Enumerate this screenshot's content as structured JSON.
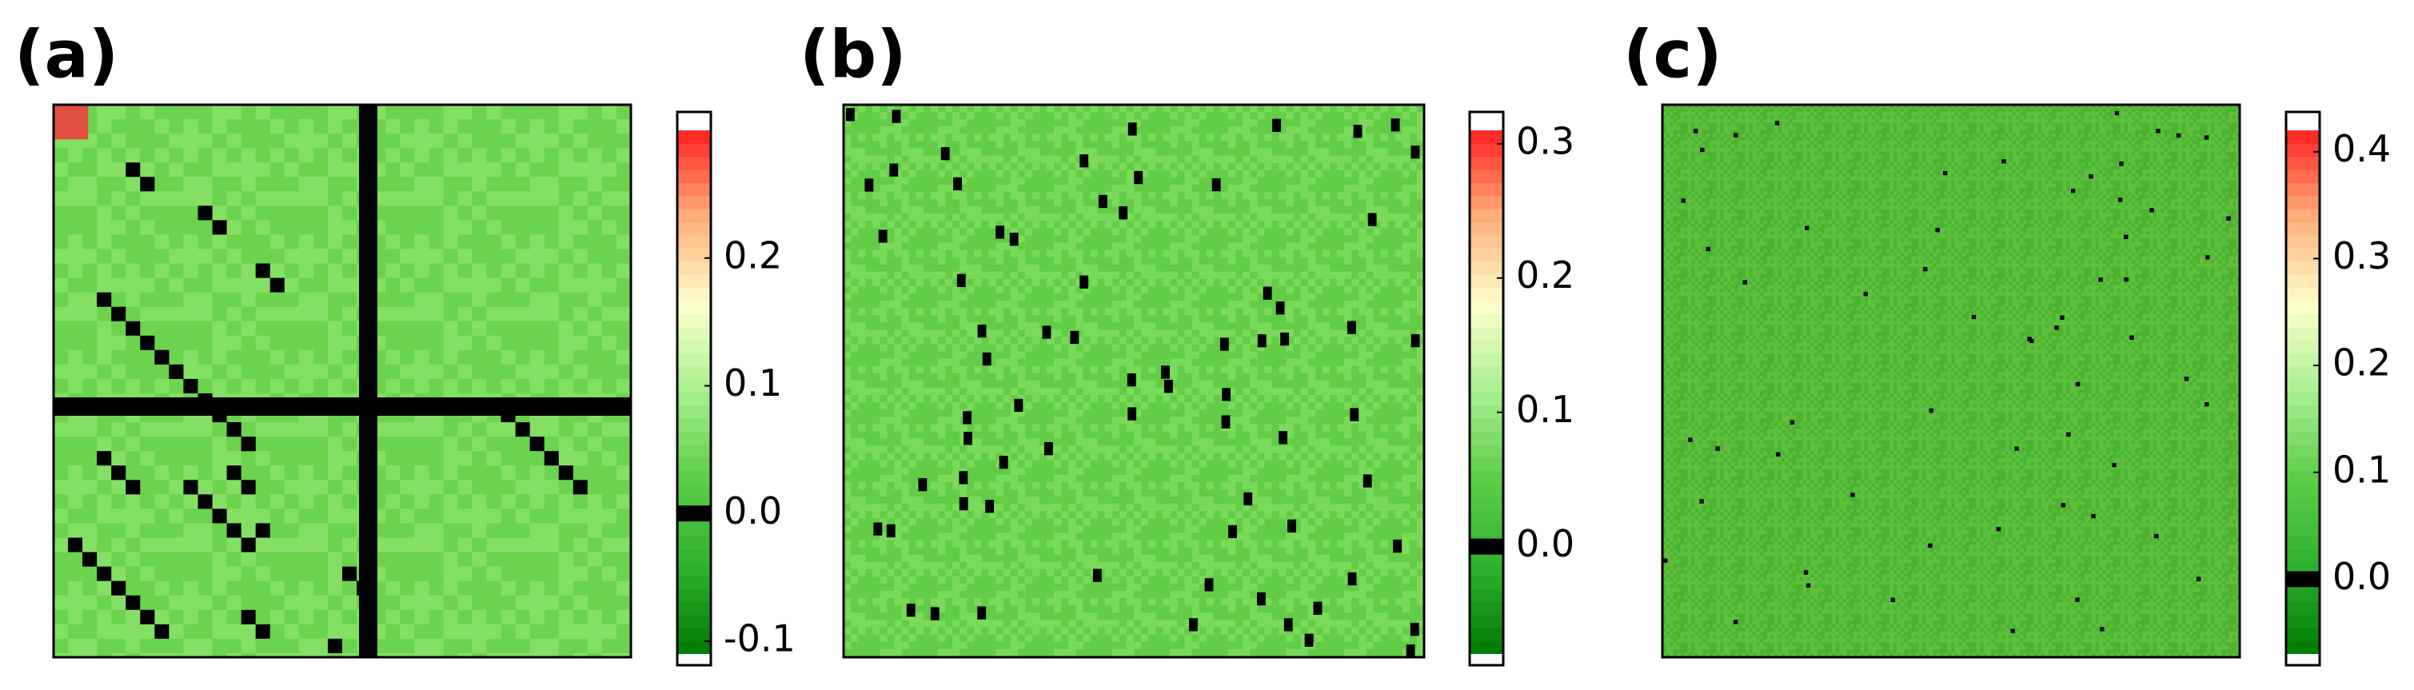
{
  "chart_data": [
    {
      "type": "heatmap",
      "label": "(a)",
      "zlim": [
        -0.11,
        0.3
      ],
      "zticks": [
        -0.1,
        {
          "value": 0,
          "label": "0.0"
        },
        0.1,
        0.2
      ],
      "colors": [
        "#84e064",
        "#6cd34e"
      ],
      "colormap": [
        "#007a00",
        "#2fb02f",
        "#5ccd48",
        "#a6f08e",
        "#ffffcc",
        "#ffb07a",
        "#ff2020"
      ]
    },
    {
      "type": "heatmap",
      "label": "(b)",
      "zlim": [
        -0.08,
        0.31
      ],
      "zticks": [
        {
          "value": 0,
          "label": "0.0"
        },
        0.1,
        0.2,
        0.3
      ],
      "colors": [
        "#7ada5a",
        "#62cc46"
      ],
      "colormap": [
        "#007a00",
        "#2fb02f",
        "#5ccd48",
        "#a6f08e",
        "#ffffcc",
        "#ffb07a",
        "#ff2020"
      ]
    },
    {
      "type": "heatmap",
      "label": "(c)",
      "zlim": [
        -0.07,
        0.42
      ],
      "zticks": [
        {
          "value": 0,
          "label": "0.0"
        },
        0.1,
        0.2,
        0.3,
        0.4
      ],
      "colors": [
        "#5cc03c",
        "#4cb232"
      ],
      "colormap": [
        "#007a00",
        "#2fb02f",
        "#5ccd48",
        "#a6f08e",
        "#ffffcc",
        "#ffb07a",
        "#ff2020"
      ]
    }
  ]
}
